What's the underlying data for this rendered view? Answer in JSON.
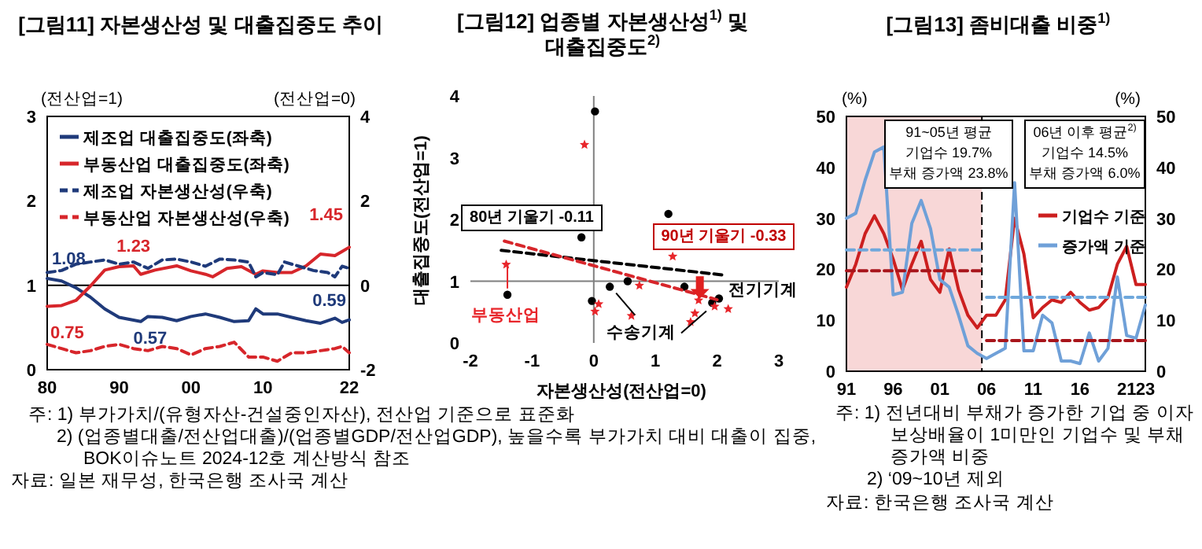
{
  "chart_data": [
    {
      "type": "line",
      "title": "[그림11] 자본생산성 및 대출집중도 추이",
      "ylabel": "(전산업=1)",
      "y2label": "(전산업=0)",
      "xlim": [
        1980,
        2022
      ],
      "xticks": [
        {
          "value": 1980,
          "label": "80"
        },
        {
          "value": 1990,
          "label": "90"
        },
        {
          "value": 2000,
          "label": "00"
        },
        {
          "value": 2010,
          "label": "10"
        },
        {
          "value": 2022,
          "label": "22"
        }
      ],
      "ylim": [
        0,
        3
      ],
      "yticks": [
        0,
        1,
        2,
        3
      ],
      "y2lim": [
        -2,
        4
      ],
      "y2ticks": [
        -2,
        0,
        2,
        4
      ],
      "legend": "top left",
      "ref_lines": [
        {
          "axis": "y",
          "value": 1,
          "color": "#000000"
        }
      ],
      "series": [
        {
          "name": "제조업 대출집중도(좌축)",
          "color": "#1f3a7a",
          "line_style": "solid",
          "x": [
            1980,
            1982,
            1984,
            1986,
            1988,
            1990,
            1993,
            1994,
            1996,
            1998,
            2000,
            2002,
            2004,
            2006,
            2008,
            2009,
            2010,
            2012,
            2014,
            2016,
            2018,
            2020,
            2021,
            2022
          ],
          "values": [
            1.08,
            1.05,
            0.97,
            0.86,
            0.72,
            0.62,
            0.57,
            0.63,
            0.62,
            0.58,
            0.63,
            0.66,
            0.62,
            0.57,
            0.58,
            0.72,
            0.66,
            0.66,
            0.62,
            0.58,
            0.55,
            0.61,
            0.56,
            0.59
          ]
        },
        {
          "name": "부동산업 대출집중도(좌축)",
          "color": "#d7262b",
          "line_style": "solid",
          "x": [
            1980,
            1982,
            1984,
            1986,
            1988,
            1990,
            1992,
            1993,
            1995,
            1998,
            2000,
            2002,
            2003,
            2005,
            2007,
            2009,
            2010,
            2012,
            2014,
            2016,
            2018,
            2020,
            2021,
            2022
          ],
          "values": [
            0.75,
            0.76,
            0.82,
            0.99,
            1.18,
            1.22,
            1.23,
            1.13,
            1.18,
            1.23,
            1.17,
            1.13,
            1.1,
            1.2,
            1.22,
            1.13,
            1.17,
            1.15,
            1.15,
            1.23,
            1.37,
            1.35,
            1.4,
            1.45
          ]
        },
        {
          "name": "제조업 자본생산성(우축)",
          "color": "#1f3a7a",
          "line_style": "dashed",
          "axis": "y2",
          "x": [
            1980,
            1982,
            1984,
            1986,
            1988,
            1990,
            1992,
            1994,
            1996,
            1998,
            2000,
            2002,
            2004,
            2006,
            2008,
            2009,
            2010,
            2012,
            2013,
            2015,
            2017,
            2019,
            2020,
            2021,
            2022
          ],
          "values": [
            0.3,
            0.35,
            0.5,
            0.55,
            0.6,
            0.5,
            0.55,
            0.4,
            0.6,
            0.62,
            0.55,
            0.45,
            0.62,
            0.6,
            0.55,
            0.2,
            0.3,
            0.25,
            0.55,
            0.45,
            0.35,
            0.3,
            0.2,
            0.45,
            0.4
          ]
        },
        {
          "name": "부동산업 자본생산성(우축)",
          "color": "#d7262b",
          "line_style": "dashed",
          "axis": "y2",
          "x": [
            1980,
            1982,
            1984,
            1986,
            1988,
            1990,
            1992,
            1994,
            1996,
            1998,
            2000,
            2002,
            2004,
            2006,
            2008,
            2010,
            2012,
            2014,
            2016,
            2018,
            2020,
            2021,
            2022
          ],
          "values": [
            -1.4,
            -1.5,
            -1.6,
            -1.55,
            -1.45,
            -1.4,
            -1.5,
            -1.55,
            -1.45,
            -1.5,
            -1.65,
            -1.5,
            -1.45,
            -1.35,
            -1.7,
            -1.7,
            -1.8,
            -1.6,
            -1.6,
            -1.55,
            -1.5,
            -1.45,
            -1.6
          ]
        }
      ],
      "annotations": [
        {
          "text": "1.08",
          "x": 1980,
          "y": 1.08
        },
        {
          "text": "1.23",
          "x": 1992,
          "y": 1.23
        },
        {
          "text": "1.45",
          "x": 2022,
          "y": 1.45
        },
        {
          "text": "0.75",
          "x": 1980,
          "y": 0.75
        },
        {
          "text": "0.57",
          "x": 1993,
          "y": 0.57
        },
        {
          "text": "0.59",
          "x": 2022,
          "y": 0.59
        }
      ]
    },
    {
      "type": "scatter",
      "title": "[그림12] 업종별 자본생산성$^{1)}$ 및 대출집중도$^{2)}$",
      "xlabel": "자본생산성(전산업=0)",
      "ylabel": "대출집중도(전산업=1)",
      "xlim": [
        -2,
        3
      ],
      "xticks": [
        -2,
        -1,
        0,
        1,
        2,
        3
      ],
      "ylim": [
        0,
        4
      ],
      "yticks": [
        0,
        1,
        2,
        3,
        4
      ],
      "ref_lines": [
        {
          "axis": "x",
          "value": 0,
          "color": "#7f7f7f"
        },
        {
          "axis": "y",
          "value": 1,
          "color": "#7f7f7f"
        }
      ],
      "series": [
        {
          "color": "#000000",
          "marker": "circle",
          "x": [
            -1.4,
            -0.2,
            0.02,
            -0.03,
            0.26,
            0.55,
            1.21,
            1.47,
            1.92,
            2.03
          ],
          "values": [
            0.78,
            1.71,
            3.75,
            0.68,
            0.91,
            1.0,
            2.09,
            0.91,
            0.65,
            0.72
          ]
        },
        {
          "color": "#e8262b",
          "marker": "star",
          "x": [
            -0.15,
            -1.42,
            0.02,
            0.08,
            0.61,
            0.74,
            1.28,
            1.57,
            1.64,
            1.7,
            1.96,
            2.18
          ],
          "values": [
            3.21,
            1.27,
            0.51,
            0.63,
            0.44,
            0.93,
            1.4,
            0.34,
            0.48,
            0.69,
            0.59,
            0.55
          ]
        },
        {
          "type": "line",
          "color": "#000000",
          "line_style": "dashed",
          "x": [
            -1.5,
            2.1
          ],
          "values": [
            1.5,
            1.1
          ]
        },
        {
          "type": "line",
          "color": "#d7262b",
          "line_style": "dashed",
          "x": [
            -1.45,
            2.0
          ],
          "values": [
            1.65,
            0.7
          ]
        }
      ],
      "annotations": [
        "80년 기울기 -0.11",
        "90년 기울기 -0.33",
        {
          "text": "부동산업",
          "x": -1.4,
          "y": 0.78
        },
        {
          "text": "수송기계",
          "x": 0.26,
          "y": 0.91
        },
        {
          "text": "전기기계",
          "x": 2.03,
          "y": 0.72
        },
        "주: 1) 부가가치/(유형자산-건설중인자산), 전산업 기준으로 표준화",
        "2) (업종별대출/전산업대출)/(업종별GDP/전산업GDP), 높을수록 부가가치 대비 대출이 집중, BOK이슈노트 2024-12호 계산방식 참조",
        "자료: 일본 재무성, 한국은행 조사국 계산"
      ]
    },
    {
      "type": "line",
      "title": "[그림13] 좀비대출 비중$^{1)}$",
      "ylabel": "(%)",
      "y2label": "(%)",
      "xlim": [
        1991,
        2023
      ],
      "xticks": [
        {
          "value": 1991,
          "label": "91"
        },
        {
          "value": 1996,
          "label": "96"
        },
        {
          "value": 2001,
          "label": "01"
        },
        {
          "value": 2006,
          "label": "06"
        },
        {
          "value": 2011,
          "label": "11"
        },
        {
          "value": 2016,
          "label": "16"
        },
        {
          "value": 2021,
          "label": "21"
        },
        {
          "value": 2023,
          "label": "23"
        }
      ],
      "ylim": [
        0,
        50
      ],
      "yticks": [
        0,
        10,
        20,
        30,
        40,
        50
      ],
      "y2lim": [
        0,
        50
      ],
      "y2ticks": [
        0,
        10,
        20,
        30,
        40,
        50
      ],
      "legend": "right",
      "bands": [
        {
          "axis": "x",
          "from": 1991,
          "to": 2005.5,
          "color": "#f8d7d7"
        }
      ],
      "ref_lines": [
        {
          "axis": "x",
          "value": 2005.5,
          "color": "#000000",
          "line_style": "dashed"
        }
      ],
      "x": [
        1991,
        1992,
        1993,
        1994,
        1995,
        1996,
        1997,
        1998,
        1999,
        2000,
        2001,
        2002,
        2003,
        2004,
        2005,
        2006,
        2007,
        2008,
        2009,
        2010,
        2011,
        2012,
        2013,
        2014,
        2015,
        2016,
        2017,
        2018,
        2019,
        2020,
        2021,
        2022,
        2023
      ],
      "series": [
        {
          "name": "기업수 기준",
          "color": "#cc1f1f",
          "values": [
            16.5,
            21,
            27,
            30.5,
            27,
            22,
            16,
            21,
            25.5,
            18,
            15.5,
            24,
            16,
            11,
            8.5,
            11,
            11,
            14,
            30,
            23,
            10.5,
            12.5,
            14,
            13.5,
            15.5,
            13.5,
            12,
            12.5,
            14.5,
            21,
            24.5,
            17,
            17
          ]
        },
        {
          "name": "증가액 기준",
          "color": "#6fa0d8",
          "values": [
            30,
            31,
            37.5,
            43,
            44,
            15,
            15.5,
            29,
            33.5,
            28,
            18,
            16.5,
            11,
            5,
            3.5,
            2.5,
            3.5,
            4.5,
            37,
            4,
            4,
            11,
            9.5,
            2,
            2,
            1.5,
            7.5,
            2,
            4.5,
            18.5,
            7,
            6.5,
            13
          ]
        },
        {
          "type": "line",
          "color": "#a8151b",
          "line_style": "dashed",
          "x": [
            1991,
            2005.5
          ],
          "values": [
            19.7,
            19.7
          ]
        },
        {
          "type": "line",
          "color": "#6fa8dc",
          "line_style": "dashed",
          "x": [
            1991,
            2005.5
          ],
          "values": [
            23.8,
            23.8
          ]
        },
        {
          "type": "line",
          "color": "#6fa8dc",
          "line_style": "dashed",
          "x": [
            2006,
            2023
          ],
          "values": [
            14.5,
            14.5
          ]
        },
        {
          "type": "line",
          "color": "#a8151b",
          "line_style": "dashed",
          "x": [
            2006,
            2023
          ],
          "values": [
            6.0,
            6.0
          ]
        }
      ],
      "annotations": [
        "91~05년 평균\n기업수 19.7%\n부채 증가액 23.8%",
        "06년 이후 평균$^{2)}$\n기업수 14.5%\n부채 증가액 6.0%",
        "주: 1) 전년대비 부채가 증가한 기업 중 이자보상배율이 1미만인 기업수 및 부채 증가액 비중",
        "2) ‘09~10년 제외",
        "자료: 한국은행 조사국 계산"
      ]
    }
  ]
}
